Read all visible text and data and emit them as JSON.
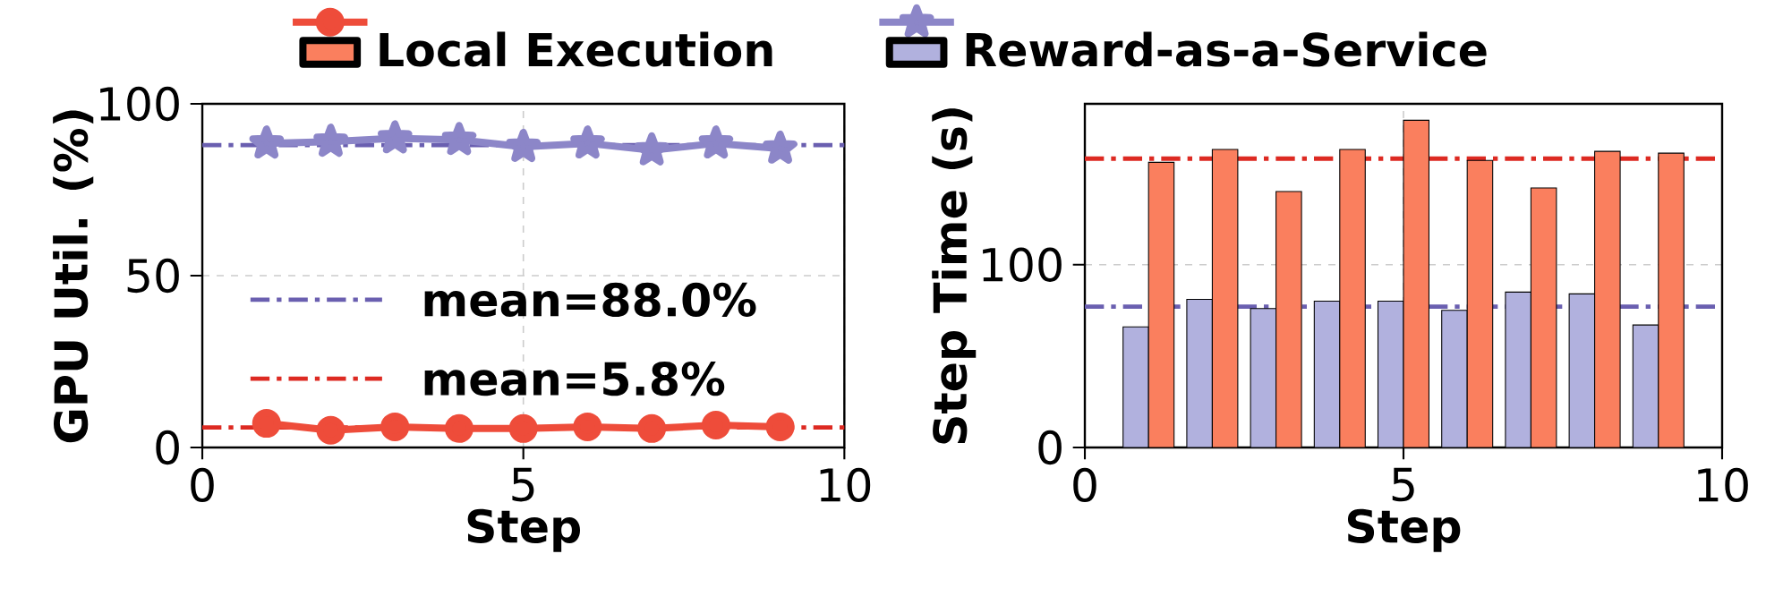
{
  "chart_data": [
    {
      "type": "line",
      "xlabel": "Step",
      "ylabel": "GPU Util. (%)",
      "x": [
        1,
        2,
        3,
        4,
        5,
        6,
        7,
        8,
        9
      ],
      "series": [
        {
          "name": "Local Execution",
          "color": "#ee4c3a",
          "marker": "circle",
          "values": [
            7,
            5,
            6,
            5.5,
            5.5,
            6,
            5.5,
            6.5,
            6
          ]
        },
        {
          "name": "Reward-as-a-Service",
          "color": "#8c86c8",
          "marker": "star",
          "values": [
            88.5,
            89,
            90,
            89.5,
            87.5,
            88.5,
            86.5,
            88.5,
            87
          ]
        }
      ],
      "ref_lines": [
        {
          "axis": "y",
          "value": 88.0,
          "label": "mean=88.0%",
          "color": "#6a5fb0",
          "line_style": "dashdot"
        },
        {
          "axis": "y",
          "value": 5.8,
          "label": "mean=5.8%",
          "color": "#dd2a22",
          "line_style": "dashdot"
        }
      ],
      "xlim": [
        0,
        10
      ],
      "ylim": [
        0,
        100
      ],
      "xticks": [
        0,
        5,
        10
      ],
      "yticks": [
        0,
        50,
        100
      ],
      "grid": true,
      "legend": "top"
    },
    {
      "type": "bar",
      "xlabel": "Step",
      "ylabel": "Step Time (s)",
      "x": [
        1,
        2,
        3,
        4,
        5,
        6,
        7,
        8,
        9
      ],
      "series": [
        {
          "color": "#b1b1de",
          "values": [
            66,
            81,
            76,
            80,
            80,
            75,
            85,
            84,
            67
          ]
        },
        {
          "color": "#fa7f5e",
          "values": [
            156,
            163,
            140,
            163,
            179,
            157,
            142,
            162,
            161
          ]
        }
      ],
      "ref_lines": [
        {
          "axis": "y",
          "value": 158,
          "color": "#dd2a22",
          "line_style": "dashdot"
        },
        {
          "axis": "y",
          "value": 77,
          "color": "#6a5fb0",
          "line_style": "dashdot"
        }
      ],
      "xlim": [
        0,
        10
      ],
      "ylim": [
        0,
        188
      ],
      "xticks": [
        0,
        5,
        10
      ],
      "yticks": [
        0,
        100
      ],
      "grid": true
    }
  ]
}
